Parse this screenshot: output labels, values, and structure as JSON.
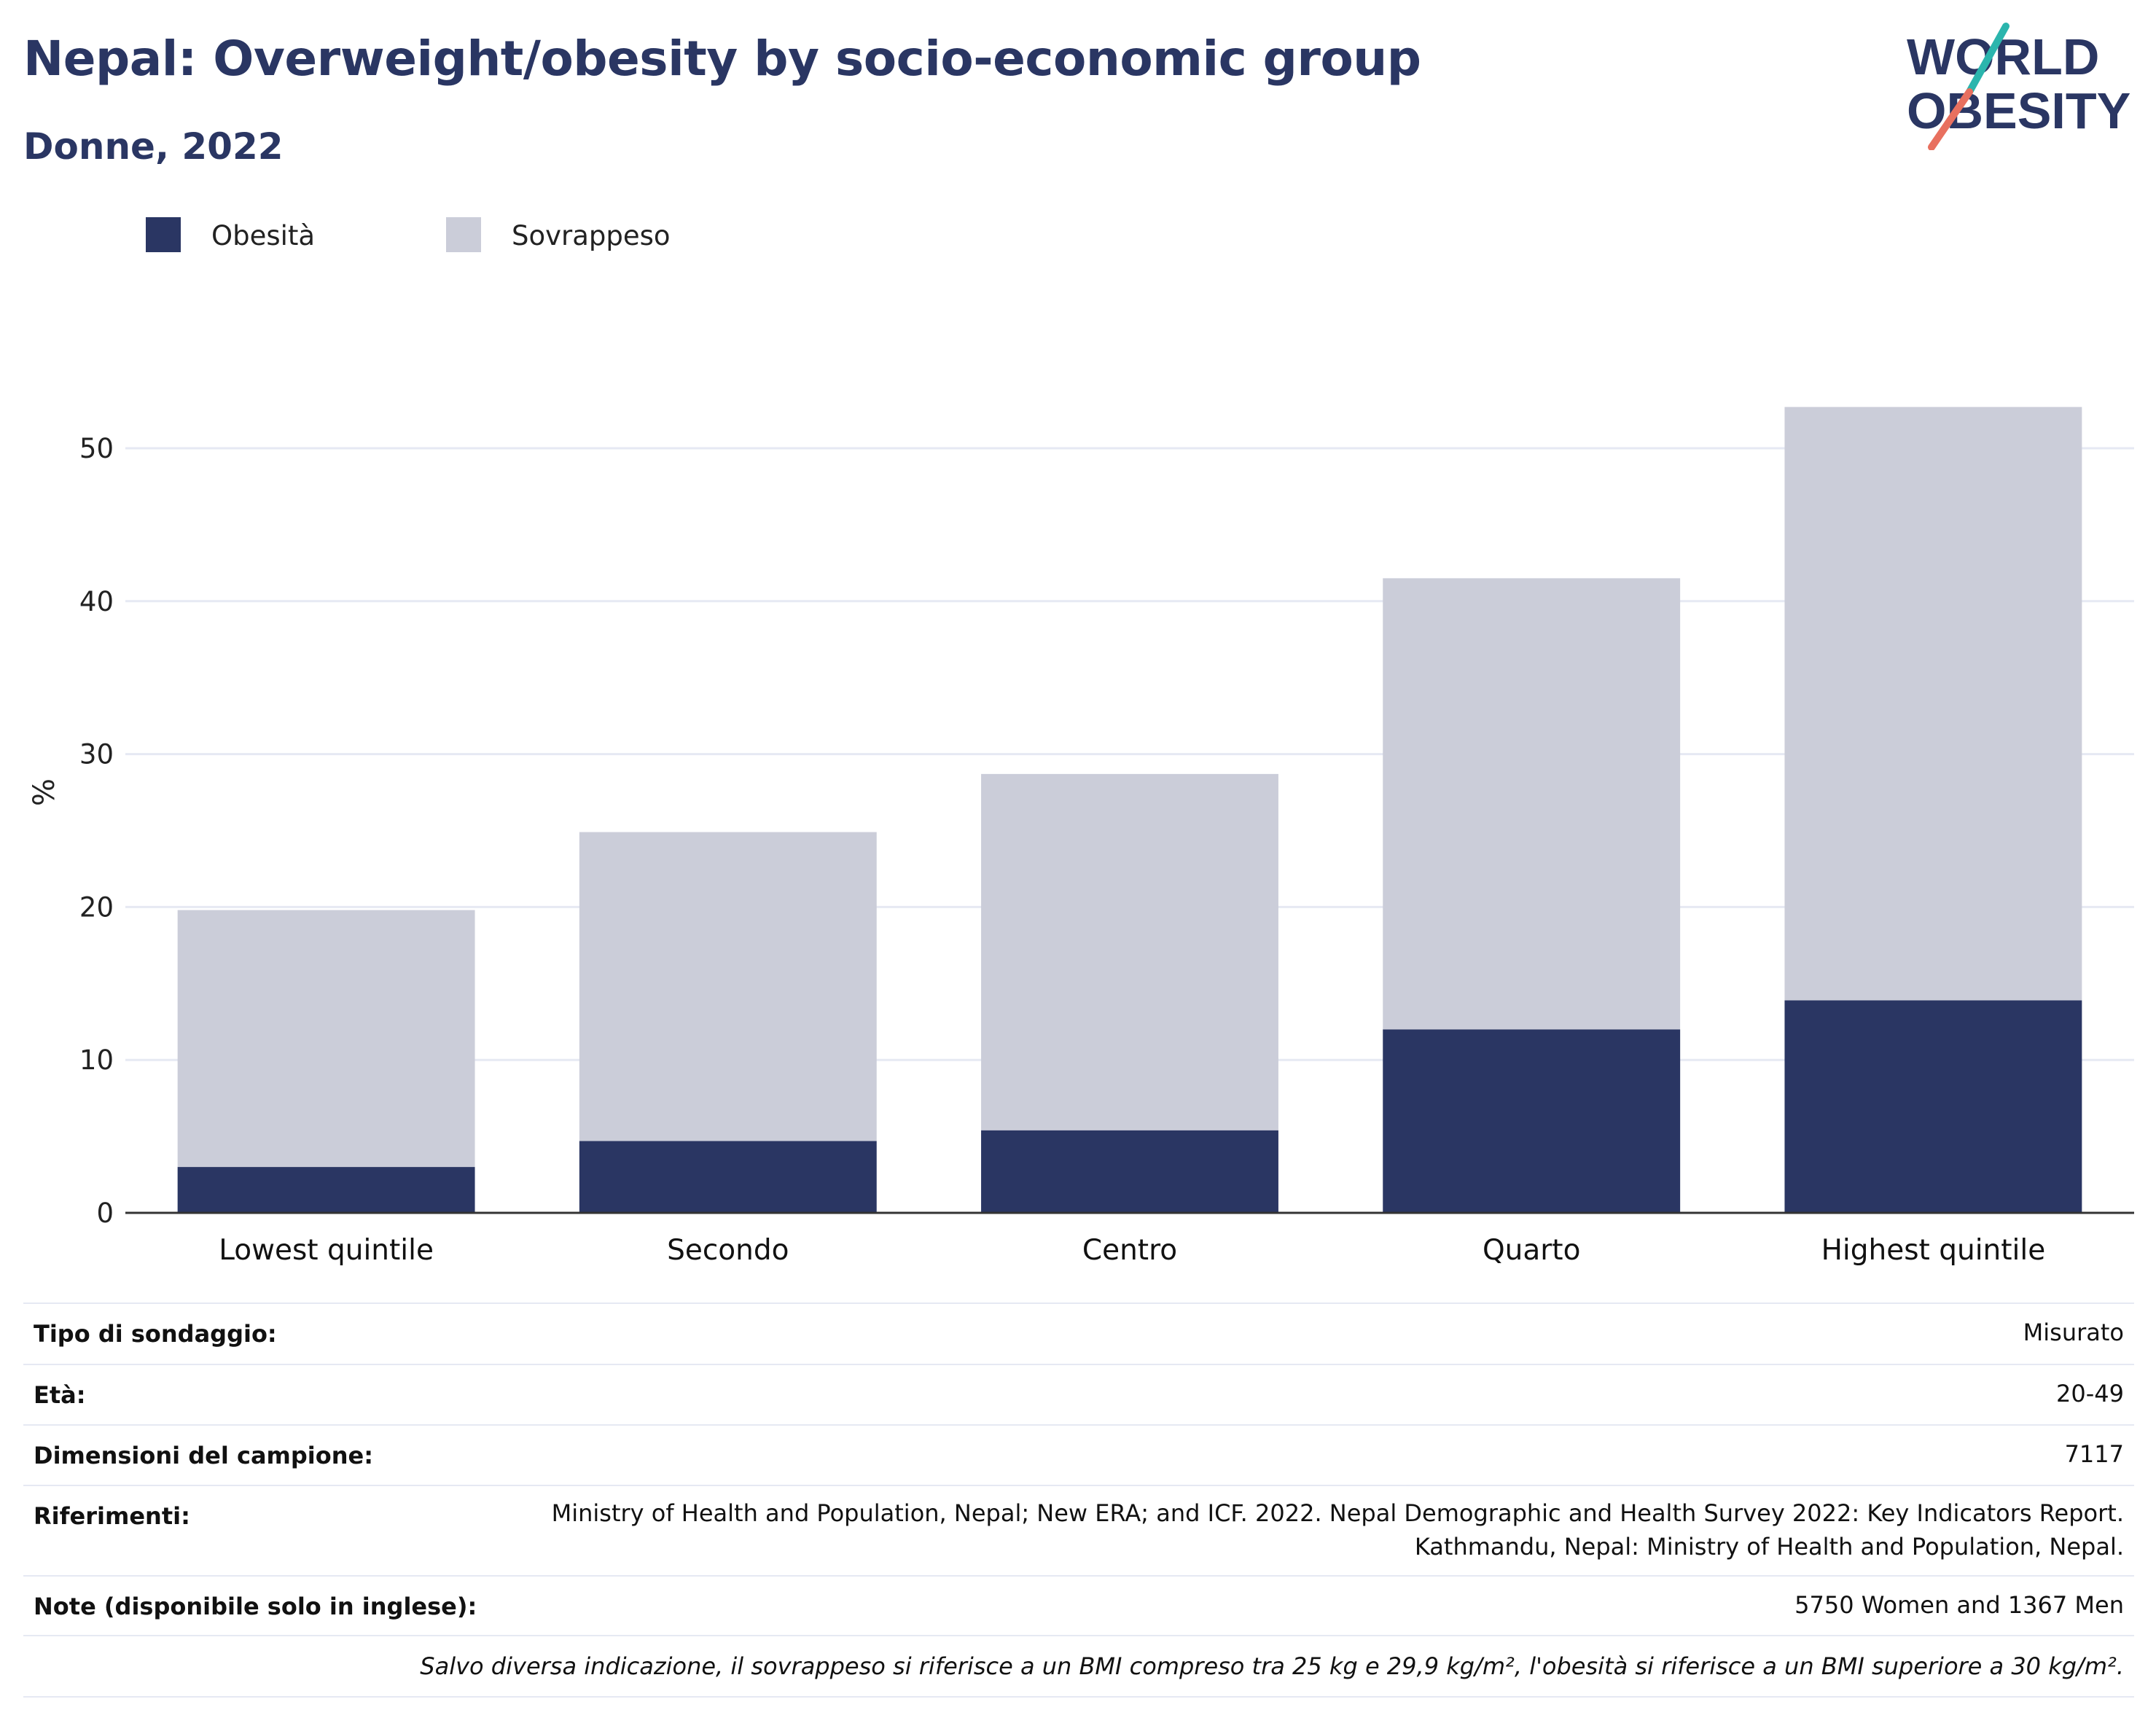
{
  "header": {
    "title": "Nepal: Overweight/obesity by socio-economic group",
    "subtitle": "Donne, 2022"
  },
  "logo": {
    "line1": "WORLD",
    "line2": "OBESITY"
  },
  "legend": [
    {
      "label": "Obesità",
      "color": "#2a3663"
    },
    {
      "label": "Sovrappeso",
      "color": "#cbcdd9"
    }
  ],
  "chart_data": {
    "type": "bar",
    "stacked": true,
    "categories": [
      "Lowest quintile",
      "Secondo",
      "Centro",
      "Quarto",
      "Highest quintile"
    ],
    "series": [
      {
        "name": "Obesità",
        "color": "#2a3663",
        "values": [
          3.0,
          4.7,
          5.4,
          12.0,
          13.9
        ]
      },
      {
        "name": "Sovrappeso",
        "color": "#cbcdd9",
        "values": [
          16.8,
          20.2,
          23.3,
          29.5,
          38.8
        ]
      }
    ],
    "totals": [
      19.8,
      24.9,
      28.7,
      41.5,
      52.7
    ],
    "ylabel": "%",
    "xlabel": "",
    "ylim": [
      0,
      55
    ],
    "yticks": [
      0,
      10,
      20,
      30,
      40,
      50
    ],
    "grid": true,
    "legend_position": "top-left"
  },
  "info": {
    "rows": [
      {
        "label": "Tipo di sondaggio:",
        "value": "Misurato"
      },
      {
        "label": "Età:",
        "value": "20-49"
      },
      {
        "label": "Dimensioni del campione:",
        "value": "7117"
      },
      {
        "label": "Riferimenti:",
        "value_lines": [
          "Ministry of Health and Population, Nepal; New ERA; and ICF. 2022. Nepal Demographic and Health Survey 2022: Key Indicators Report.",
          "Kathmandu, Nepal: Ministry of Health and Population, Nepal."
        ]
      },
      {
        "label": "Note (disponibile solo in inglese):",
        "value": "5750 Women and 1367 Men"
      }
    ],
    "footnote": "Salvo diversa indicazione, il sovrappeso si riferisce a un BMI compreso tra 25 kg e 29,9 kg/m², l'obesità si riferisce a un BMI superiore a 30 kg/m²."
  }
}
